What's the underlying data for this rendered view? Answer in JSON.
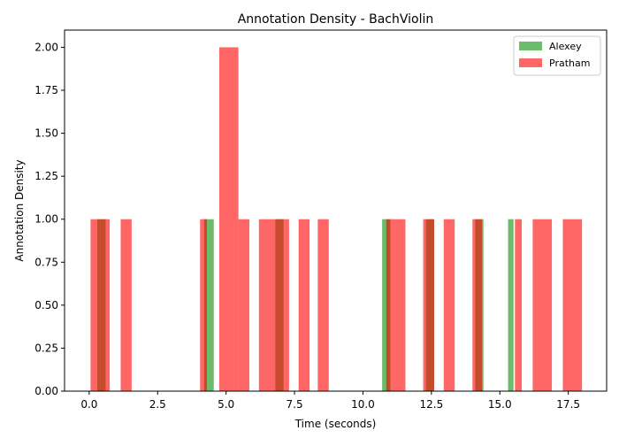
{
  "chart_data": {
    "type": "bar",
    "title": "Annotation Density - BachViolin",
    "xlabel": "Time (seconds)",
    "ylabel": "Annotation Density",
    "xlim": [
      -0.9,
      18.9
    ],
    "ylim": [
      0,
      2.1
    ],
    "x_ticks": [
      0,
      2.5,
      5,
      7.5,
      10,
      12.5,
      15,
      17.5
    ],
    "x_tick_labels": [
      "0.0",
      "2.5",
      "5.0",
      "7.5",
      "10.0",
      "12.5",
      "15.0",
      "17.5"
    ],
    "y_ticks": [
      0,
      0.25,
      0.5,
      0.75,
      1,
      1.25,
      1.5,
      1.75,
      2
    ],
    "y_tick_labels": [
      "0.00",
      "0.25",
      "0.50",
      "0.75",
      "1.00",
      "1.25",
      "1.50",
      "1.75",
      "2.00"
    ],
    "grid": false,
    "legend_position": "top-right",
    "series": [
      {
        "name": "Alexey",
        "color": "#2ca02c",
        "opacity": 0.7,
        "bars": [
          {
            "x0": 0.3,
            "x1": 0.6,
            "value": 1
          },
          {
            "x0": 4.2,
            "x1": 4.55,
            "value": 1
          },
          {
            "x0": 6.8,
            "x1": 7.1,
            "value": 1
          },
          {
            "x0": 10.7,
            "x1": 11.0,
            "value": 1
          },
          {
            "x0": 12.3,
            "x1": 12.6,
            "value": 1
          },
          {
            "x0": 14.1,
            "x1": 14.4,
            "value": 1
          },
          {
            "x0": 15.3,
            "x1": 15.5,
            "value": 1
          }
        ]
      },
      {
        "name": "Pratham",
        "color": "#ff0000",
        "opacity": 0.6,
        "bars": [
          {
            "x0": 0.05,
            "x1": 0.75,
            "value": 1
          },
          {
            "x0": 1.15,
            "x1": 1.55,
            "value": 1
          },
          {
            "x0": 4.05,
            "x1": 4.3,
            "value": 1
          },
          {
            "x0": 4.75,
            "x1": 5.45,
            "value": 2
          },
          {
            "x0": 5.45,
            "x1": 5.85,
            "value": 1
          },
          {
            "x0": 6.2,
            "x1": 7.3,
            "value": 1
          },
          {
            "x0": 7.65,
            "x1": 8.05,
            "value": 1
          },
          {
            "x0": 8.35,
            "x1": 8.75,
            "value": 1
          },
          {
            "x0": 10.85,
            "x1": 11.55,
            "value": 1
          },
          {
            "x0": 12.2,
            "x1": 12.6,
            "value": 1
          },
          {
            "x0": 12.95,
            "x1": 13.35,
            "value": 1
          },
          {
            "x0": 14.0,
            "x1": 14.35,
            "value": 1
          },
          {
            "x0": 15.55,
            "x1": 15.8,
            "value": 1
          },
          {
            "x0": 16.2,
            "x1": 16.9,
            "value": 1
          },
          {
            "x0": 17.3,
            "x1": 18.0,
            "value": 1
          }
        ]
      }
    ]
  }
}
